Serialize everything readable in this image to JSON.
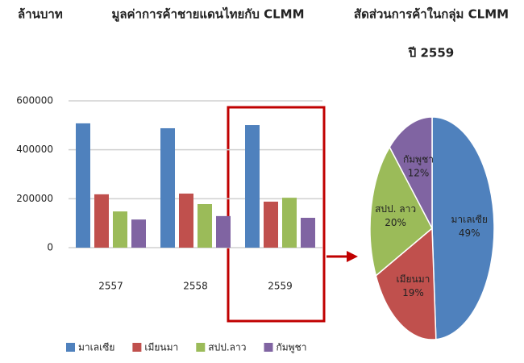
{
  "chart_data": [
    {
      "type": "bar",
      "title": "มูลค่าการค้าชายแดนไทยกับ CLMM",
      "ylabel": "ล้านบาท",
      "categories": [
        "2557",
        "2558",
        "2559"
      ],
      "series": [
        {
          "name": "มาเลเซีย",
          "color": "#4f81bd",
          "values": [
            508000,
            488000,
            501000
          ]
        },
        {
          "name": "เมียนมา",
          "color": "#c0504d",
          "values": [
            218000,
            221000,
            188000
          ]
        },
        {
          "name": "สปป.ลาว",
          "color": "#9bbb59",
          "values": [
            148000,
            178000,
            204000
          ]
        },
        {
          "name": "กัมพูชา",
          "color": "#8064a2",
          "values": [
            115000,
            129000,
            122000
          ]
        }
      ],
      "ylim": [
        0,
        600000
      ],
      "yticks": [
        0,
        200000,
        400000,
        600000
      ],
      "grid": true,
      "legend": "bottom"
    },
    {
      "type": "pie",
      "title": "สัดส่วนการค้าในกลุ่ม CLMM",
      "subtitle": "ปี 2559",
      "categories": [
        "มาเลเซีย",
        "เมียนมา",
        "สปป. ลาว",
        "กัมพูชา"
      ],
      "values": [
        49,
        19,
        20,
        12
      ],
      "value_labels": [
        "49%",
        "19%",
        "20%",
        "12%"
      ],
      "colors": [
        "#4f81bd",
        "#c0504d",
        "#9bbb59",
        "#8064a2"
      ]
    }
  ]
}
